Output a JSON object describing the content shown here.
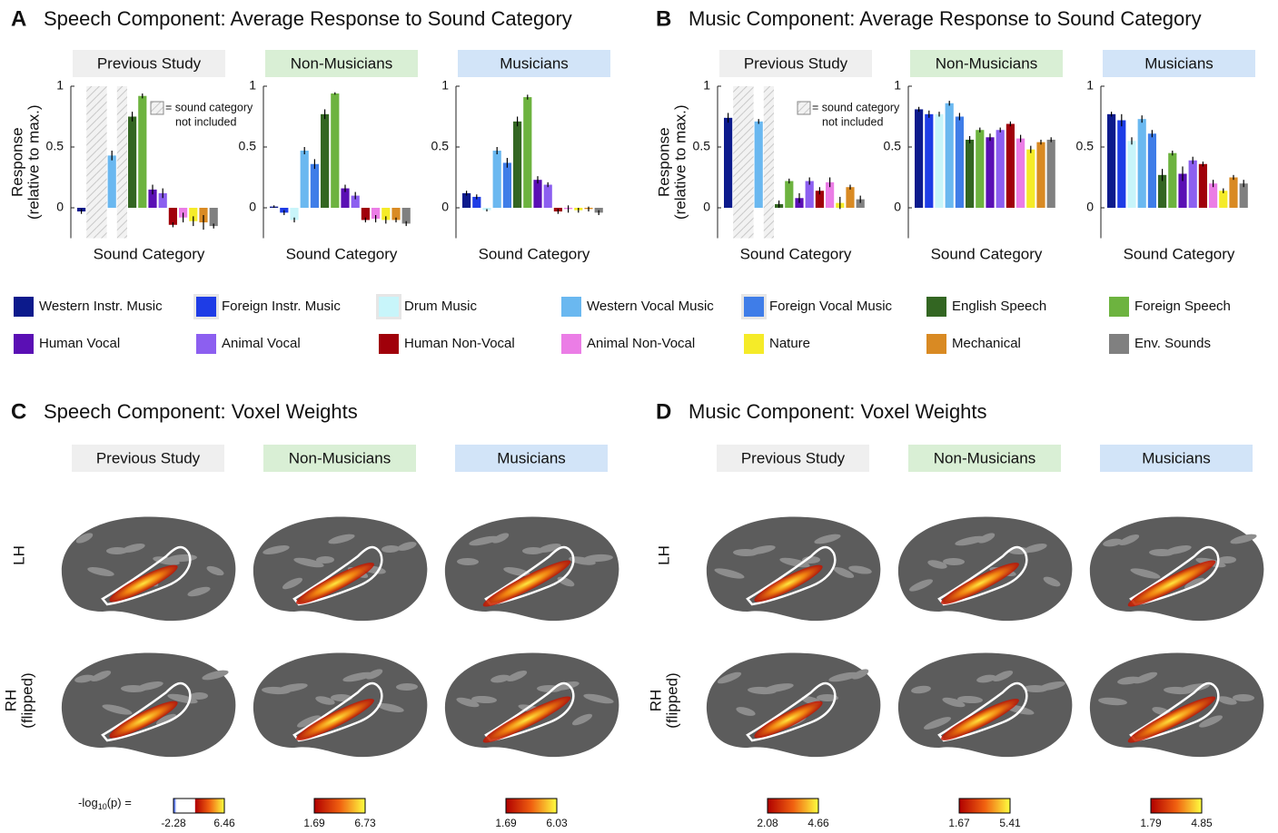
{
  "panels": [
    {
      "letter": "A",
      "title": "Speech Component: Average Response to Sound Category"
    },
    {
      "letter": "B",
      "title": "Music Component: Average Response to Sound Category"
    },
    {
      "letter": "C",
      "title": "Speech Component: Voxel Weights"
    },
    {
      "letter": "D",
      "title": "Music Component: Voxel Weights"
    }
  ],
  "chart_data": [
    {
      "type": "bar",
      "title": "Previous Study",
      "title_color": "#efefef",
      "ylabel": [
        "Response",
        "(relative to max.)"
      ],
      "xlabel": "Sound Category",
      "annotation": [
        "= sound category",
        "not included"
      ],
      "values": [
        -0.03,
        null,
        null,
        0.43,
        null,
        0.75,
        0.92,
        0.15,
        0.12,
        -0.14,
        -0.08,
        -0.11,
        -0.12,
        -0.15
      ],
      "errors": [
        0.02,
        null,
        null,
        0.04,
        null,
        0.04,
        0.02,
        0.04,
        0.04,
        0.02,
        0.04,
        0.04,
        0.06,
        0.02
      ],
      "ylim": [
        -0.25,
        1
      ],
      "yticks": [
        0,
        0.5,
        1
      ]
    },
    {
      "type": "bar",
      "title": "Non-Musicians",
      "title_color": "#d9efd5",
      "xlabel": "Sound Category",
      "values": [
        0.01,
        -0.04,
        -0.1,
        0.47,
        0.36,
        0.77,
        0.94,
        0.16,
        0.1,
        -0.1,
        -0.09,
        -0.1,
        -0.1,
        -0.13
      ],
      "errors": [
        0.01,
        0.02,
        0.02,
        0.03,
        0.04,
        0.04,
        0.01,
        0.03,
        0.03,
        0.02,
        0.03,
        0.03,
        0.02,
        0.02
      ],
      "ylim": [
        -0.25,
        1
      ],
      "yticks": [
        0,
        0.5,
        1
      ]
    },
    {
      "type": "bar",
      "title": "Musicians",
      "title_color": "#d2e4f8",
      "xlabel": "Sound Category",
      "values": [
        0.12,
        0.09,
        -0.02,
        0.47,
        0.37,
        0.71,
        0.91,
        0.23,
        0.19,
        -0.03,
        -0.01,
        -0.02,
        -0.01,
        -0.04
      ],
      "errors": [
        0.02,
        0.02,
        0.01,
        0.03,
        0.04,
        0.04,
        0.02,
        0.03,
        0.02,
        0.02,
        0.03,
        0.02,
        0.02,
        0.02
      ],
      "ylim": [
        -0.25,
        1
      ],
      "yticks": [
        0,
        0.5,
        1
      ]
    },
    {
      "type": "bar",
      "title": "Previous Study",
      "title_color": "#efefef",
      "ylabel": [
        "Response",
        "(relative to max.)"
      ],
      "xlabel": "Sound Category",
      "annotation": [
        "= sound category",
        "not included"
      ],
      "values": [
        0.74,
        null,
        null,
        0.71,
        null,
        0.03,
        0.22,
        0.08,
        0.22,
        0.14,
        0.21,
        0.04,
        0.17,
        0.07
      ],
      "errors": [
        0.04,
        null,
        null,
        0.02,
        null,
        0.03,
        0.02,
        0.04,
        0.03,
        0.03,
        0.04,
        0.05,
        0.02,
        0.03
      ],
      "ylim": [
        -0.25,
        1
      ],
      "yticks": [
        0,
        0.5,
        1
      ]
    },
    {
      "type": "bar",
      "title": "Non-Musicians",
      "title_color": "#d9efd5",
      "xlabel": "Sound Category",
      "values": [
        0.81,
        0.77,
        0.77,
        0.86,
        0.75,
        0.56,
        0.64,
        0.58,
        0.64,
        0.69,
        0.57,
        0.48,
        0.54,
        0.56
      ],
      "errors": [
        0.02,
        0.03,
        0.02,
        0.02,
        0.03,
        0.03,
        0.02,
        0.03,
        0.02,
        0.02,
        0.03,
        0.03,
        0.02,
        0.02
      ],
      "ylim": [
        -0.25,
        1
      ],
      "yticks": [
        0,
        0.5,
        1
      ]
    },
    {
      "type": "bar",
      "title": "Musicians",
      "title_color": "#d2e4f8",
      "xlabel": "Sound Category",
      "values": [
        0.77,
        0.72,
        0.55,
        0.73,
        0.61,
        0.27,
        0.45,
        0.28,
        0.39,
        0.36,
        0.2,
        0.14,
        0.25,
        0.2
      ],
      "errors": [
        0.02,
        0.05,
        0.03,
        0.03,
        0.03,
        0.05,
        0.02,
        0.06,
        0.03,
        0.02,
        0.03,
        0.02,
        0.02,
        0.03
      ],
      "ylim": [
        -0.25,
        1
      ],
      "yticks": [
        0,
        0.5,
        1
      ]
    }
  ],
  "legend": {
    "names": [
      "Western Instr. Music",
      "Foreign Instr. Music",
      "Drum Music",
      "Western Vocal Music",
      "Foreign Vocal Music",
      "English Speech",
      "Foreign Speech",
      "Human Vocal",
      "Animal Vocal",
      "Human Non-Vocal",
      "Animal Non-Vocal",
      "Nature",
      "Mechanical",
      "Env. Sounds"
    ],
    "colors": [
      "#0c1a8c",
      "#1e3ce6",
      "#c8f5fa",
      "#6ab8f0",
      "#3f7de8",
      "#336622",
      "#6db33f",
      "#5a0fb4",
      "#8c5ff0",
      "#a0000a",
      "#eb7de6",
      "#f5eb28",
      "#d98a23",
      "#808080"
    ],
    "excluded": [
      false,
      true,
      true,
      false,
      true,
      false,
      false,
      false,
      false,
      false,
      false,
      false,
      false,
      false
    ]
  },
  "voxel_panels": [
    {
      "columns": [
        "Previous Study",
        "Non-Musicians",
        "Musicians"
      ],
      "rows": [
        [
          "LH"
        ],
        [
          "RH",
          "(flipped)"
        ]
      ],
      "scale_label": {
        "base": "-log",
        "sub": "10",
        "tail": "(p) ="
      },
      "colorbars": [
        {
          "min": -2.28,
          "max": 6.46
        },
        {
          "min": 1.69,
          "max": 6.73
        },
        {
          "min": 1.69,
          "max": 6.03
        }
      ]
    },
    {
      "columns": [
        "Previous Study",
        "Non-Musicians",
        "Musicians"
      ],
      "rows": [
        [
          "LH"
        ],
        [
          "RH",
          "(flipped)"
        ]
      ],
      "colorbars": [
        {
          "min": 2.08,
          "max": 4.66
        },
        {
          "min": 1.67,
          "max": 5.41
        },
        {
          "min": 1.79,
          "max": 4.85
        }
      ]
    }
  ]
}
